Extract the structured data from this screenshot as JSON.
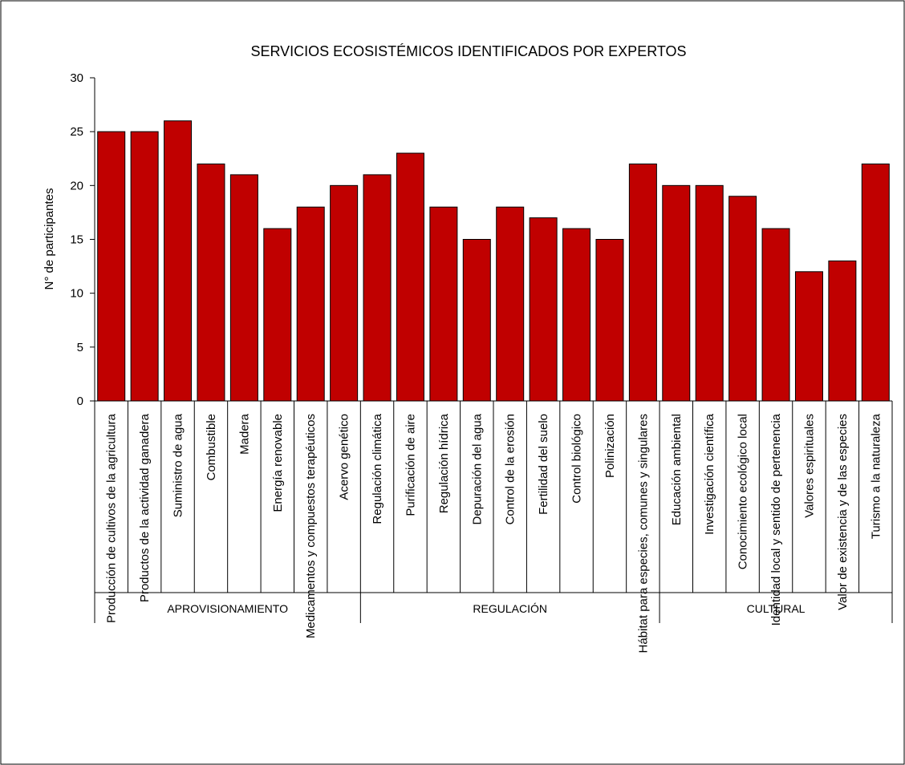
{
  "chart_data": {
    "type": "bar",
    "title": "SERVICIOS ECOSISTÉMICOS IDENTIFICADOS POR EXPERTOS",
    "xlabel": "",
    "ylabel": "N° de participantes",
    "ylim": [
      0,
      30
    ],
    "yticks": [
      0,
      5,
      10,
      15,
      20,
      25,
      30
    ],
    "grid": false,
    "legend": "none",
    "bar_color": "#c00000",
    "categories": [
      "Producción de cultivos de la agricultura",
      "Productos de la actividad ganadera",
      "Suministro de agua",
      "Combustible",
      "Madera",
      "Energía renovable",
      "Medicamentos y compuestos terapéuticos",
      "Acervo genético",
      "Regulación climática",
      "Purificación de aire",
      "Regulación hídrica",
      "Depuración del agua",
      "Control de la erosión",
      "Fertilidad del suelo",
      "Control biológico",
      "Polinización",
      "Hábitat para especies, comunes y singulares",
      "Educación ambiental",
      "Investigación científica",
      "Conocimiento ecológico local",
      "Identidad local y sentido de pertenencia",
      "Valores espirituales",
      "Valor de existencia y de las especies",
      "Turismo a la naturaleza"
    ],
    "values": [
      25,
      25,
      26,
      22,
      21,
      16,
      18,
      20,
      21,
      23,
      18,
      15,
      18,
      17,
      16,
      15,
      22,
      20,
      20,
      19,
      16,
      12,
      13,
      22
    ],
    "groups": [
      {
        "label": "APROVISIONAMIENTO",
        "count": 8
      },
      {
        "label": "REGULACIÓN",
        "count": 9
      },
      {
        "label": "CULTURAL",
        "count": 7
      }
    ]
  }
}
